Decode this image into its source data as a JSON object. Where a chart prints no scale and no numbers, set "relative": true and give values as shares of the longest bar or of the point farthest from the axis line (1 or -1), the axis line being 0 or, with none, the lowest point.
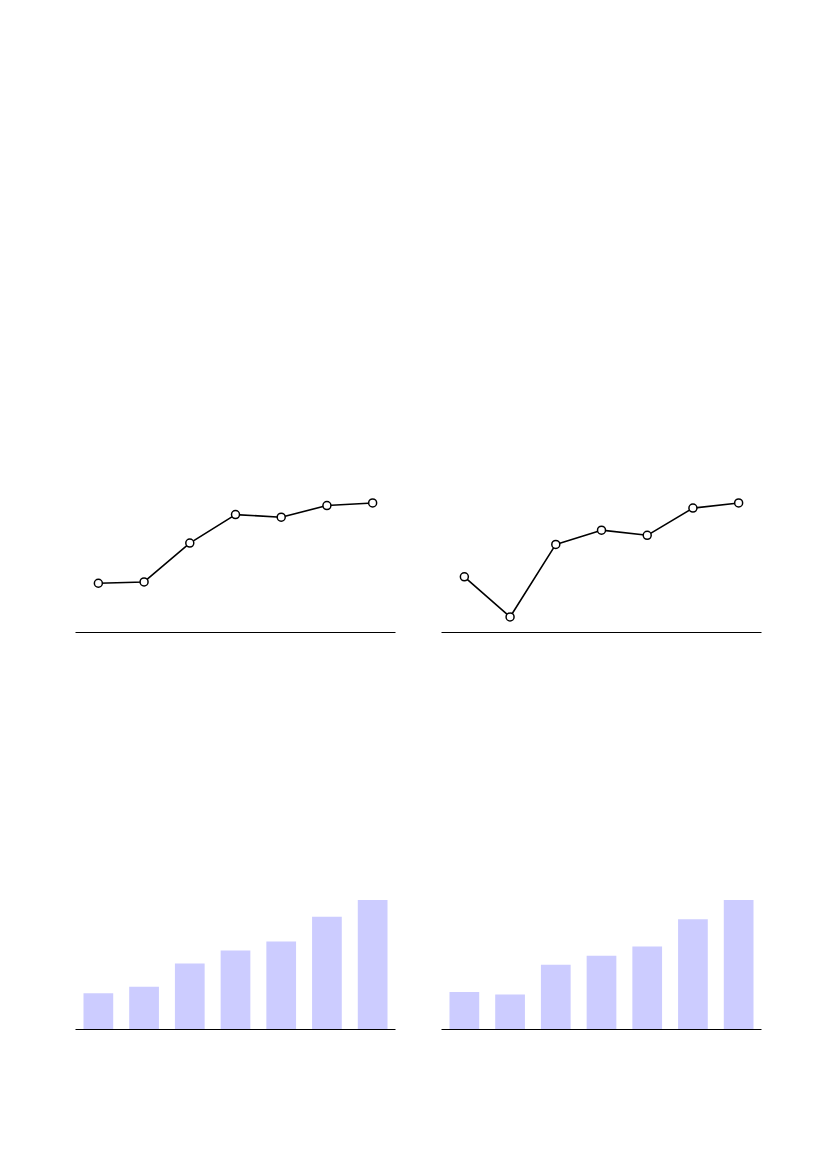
{
  "chart_data": [
    {
      "type": "line",
      "relative": true,
      "categories": [
        null,
        null,
        null,
        null,
        null,
        null,
        null
      ],
      "marker": "circle",
      "line_style": "solid",
      "grid": false,
      "series": [
        {
          "color": "#000000",
          "values": [
            0.38,
            0.39,
            0.69,
            0.91,
            0.89,
            0.98,
            1.0
          ]
        }
      ]
    },
    {
      "type": "line",
      "relative": true,
      "categories": [
        null,
        null,
        null,
        null,
        null,
        null,
        null
      ],
      "marker": "circle",
      "line_style": "solid",
      "grid": false,
      "series": [
        {
          "color": "#000000",
          "values": [
            0.43,
            0.12,
            0.68,
            0.79,
            0.75,
            0.96,
            1.0
          ]
        }
      ]
    },
    {
      "type": "bar",
      "relative": true,
      "categories": [
        null,
        null,
        null,
        null,
        null,
        null,
        null
      ],
      "grid": false,
      "series": [
        {
          "color": "#ccccff",
          "values": [
            0.28,
            0.33,
            0.51,
            0.61,
            0.68,
            0.87,
            1.0
          ]
        }
      ]
    },
    {
      "type": "bar",
      "relative": true,
      "categories": [
        null,
        null,
        null,
        null,
        null,
        null,
        null
      ],
      "grid": false,
      "series": [
        {
          "color": "#ccccff",
          "values": [
            0.29,
            0.27,
            0.5,
            0.57,
            0.64,
            0.85,
            1.0
          ]
        }
      ]
    }
  ]
}
